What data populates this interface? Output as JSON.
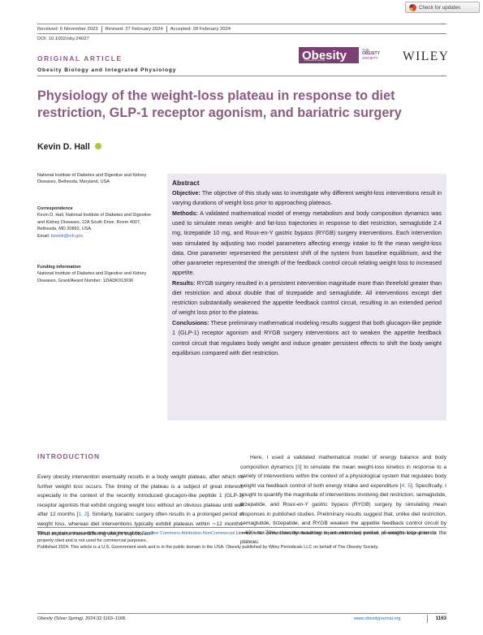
{
  "badge": {
    "label": "Check for updates"
  },
  "dates": {
    "received": "Received: 6 November 2023",
    "revised": "Revised: 27 February 2024",
    "accepted": "Accepted: 28 February 2024"
  },
  "doi": "DOI: 10.1002/oby.24027",
  "article_type": "ORIGINAL ARTICLE",
  "journal_section": "Obesity Biology and Integrated Physiology",
  "logos": {
    "journal": "Obesity",
    "journal_tag": "A Research Journal",
    "society_line1": "THE",
    "society_line2": "OBESITY",
    "society_line3": "SOCIETY",
    "publisher": "WILEY"
  },
  "title": "Physiology of the weight-loss plateau in response to diet restriction, GLP-1 receptor agonism, and bariatric surgery",
  "author": "Kevin D. Hall",
  "affiliation": "National Institute of Diabetes and Digestive and Kidney Diseases, Bethesda, Maryland, USA",
  "correspondence": {
    "heading": "Correspondence",
    "text": "Kevin D. Hall, National Institute of Diabetes and Digestive and Kidney Diseases, 12A South Drive, Room 4007, Bethesda, MD 20892, USA.",
    "email_label": "Email: ",
    "email": "kevinh@nih.gov"
  },
  "funding": {
    "heading": "Funding information",
    "text": "National Institute of Diabetes and Digestive and Kidney Diseases, Grant/Award Number: 1ZIADK013036"
  },
  "abstract": {
    "heading": "Abstract",
    "objective_label": "Objective:",
    "objective": " The objective of this study was to investigate why different weight-loss interventions result in varying durations of weight loss prior to approaching plateaus.",
    "methods_label": "Methods:",
    "methods": " A validated mathematical model of energy metabolism and body composition dynamics was used to simulate mean weight- and fat-loss trajectories in response to diet restriction, semaglutide 2.4 mg, tirzepatide 10 mg, and Roux-en-Y gastric bypass (RYGB) surgery interventions. Each intervention was simulated by adjusting two model parameters affecting energy intake to fit the mean weight-loss data. One parameter represented the persistent shift of the system from baseline equilibrium, and the other parameter represented the strength of the feedback control circuit relating weight loss to increased appetite.",
    "results_label": "Results:",
    "results": " RYGB surgery resulted in a persistent intervention magnitude more than threefold greater than diet restriction and about double that of tirzepatide and semaglutide. All interventions except diet restriction substantially weakened the appetite feedback control circuit, resulting in an extended period of weight loss prior to the plateau.",
    "conclusions_label": "Conclusions:",
    "conclusions": " These preliminary mathematical modeling results suggest that both glucagon-like peptide 1 (GLP-1) receptor agonism and RYGB surgery interventions act to weaken the appetite feedback control circuit that regulates body weight and induce greater persistent effects to shift the body weight equilibrium compared with diet restriction."
  },
  "introduction": {
    "heading": "INTRODUCTION",
    "left_a": "Every obesity intervention eventually results in a body weight plateau, after which no further weight loss occurs. The timing of the plateau is a subject of great interest, especially in the context of the recently introduced glucagon-like peptide 1 (GLP-1) receptor agonists that exhibit ongoing weight loss without an obvious plateau until well after 12 months [",
    "left_ref1": "1, 2",
    "left_b": "]. Similarly, bariatric surgery often results in a prolonged period of weight loss, whereas diet interventions typically exhibit plateaus within ∼12 months. What explains these differing weight trajectories?",
    "right_a": "Here, I used a validated mathematical model of energy balance and body composition dynamics [",
    "right_ref1": "3",
    "right_b": "] to simulate the mean weight-loss kinetics in response to a variety of interventions within the context of a physiological system that regulates body weight via feedback control of both energy intake and expenditure [",
    "right_ref2": "4, 5",
    "right_c": "]. Specifically, I sought to quantify the magnitude of interventions involving diet restriction, semaglutide, tirzepatide, and Roux-en-Y gastric bypass (RYGB) surgery by simulating mean responses in published studies. Preliminary results suggest that, unlike diet restriction, semaglutide, tirzepatide, and RYGB weaken the appetite feedback control circuit by ∼40% to 70%, thereby resulting in an extended period of weight loss prior to the plateau."
  },
  "license": {
    "line1_a": "This is an open access article under the terms of the ",
    "line1_link": "Creative Commons Attribution-NonCommercial",
    "line1_b": " License, which permits use, distribution and reproduction in any medium, provided the original work is properly cited and is not used for commercial purposes.",
    "line2": "Published 2024. This article is a U.S. Government work and is in the public domain in the USA. Obesity published by Wiley Periodicals LLC on behalf of The Obesity Society."
  },
  "footer": {
    "journal": "Obesity (Silver Spring).",
    "citation": " 2024;32:1163–1168.",
    "website": "www.obesityjournal.org",
    "page": "1163"
  }
}
